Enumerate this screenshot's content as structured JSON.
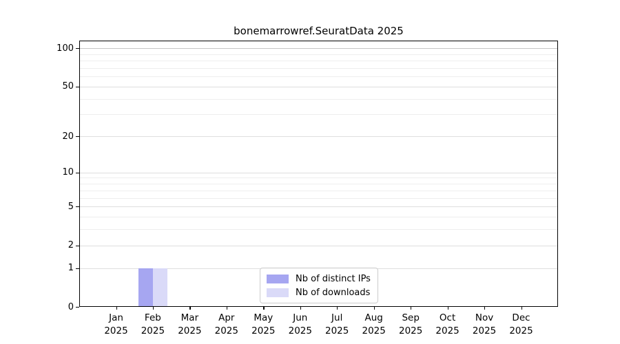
{
  "figure": {
    "title": "bonemarrowref.SeuratData 2025"
  },
  "chart_data": {
    "type": "bar",
    "title": "bonemarrowref.SeuratData 2025",
    "categories": [
      "Jan 2025",
      "Feb 2025",
      "Mar 2025",
      "Apr 2025",
      "May 2025",
      "Jun 2025",
      "Jul 2025",
      "Aug 2025",
      "Sep 2025",
      "Oct 2025",
      "Nov 2025",
      "Dec 2025"
    ],
    "x_tick_labels": {
      "months": [
        "Jan",
        "Feb",
        "Mar",
        "Apr",
        "May",
        "Jun",
        "Jul",
        "Aug",
        "Sep",
        "Oct",
        "Nov",
        "Dec"
      ],
      "year": "2025"
    },
    "series": [
      {
        "name": "Nb of distinct IPs",
        "color": "#a6a6f1",
        "values": [
          0,
          1,
          0,
          0,
          0,
          0,
          0,
          0,
          0,
          0,
          0,
          0
        ]
      },
      {
        "name": "Nb of downloads",
        "color": "#dadaf8",
        "values": [
          0,
          1,
          0,
          0,
          0,
          0,
          0,
          0,
          0,
          0,
          0,
          0
        ]
      }
    ],
    "y_axis": {
      "scale": "log1p",
      "range": [
        0,
        100
      ],
      "major_ticks": [
        0,
        1,
        2,
        5,
        10,
        20,
        50,
        100
      ],
      "minor_ticks": [
        3,
        4,
        6,
        7,
        8,
        9,
        30,
        40,
        60,
        70,
        80,
        90
      ]
    },
    "legend": {
      "position": "lower center",
      "entries": [
        "Nb of distinct IPs",
        "Nb of downloads"
      ]
    },
    "grid": {
      "major_color": "#dedede",
      "minor_color": "#eeeeee",
      "top_line_color": "#c6c6c6"
    },
    "colors": {
      "frame": "#000000",
      "text": "#000000",
      "background": "#ffffff"
    }
  }
}
